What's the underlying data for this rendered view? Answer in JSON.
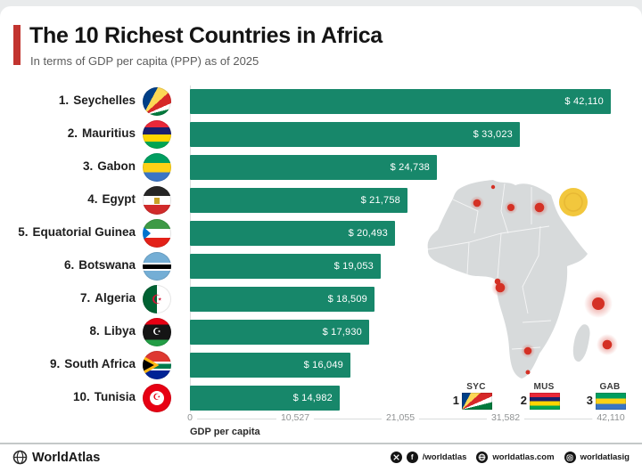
{
  "page": {
    "title": "The 10 Richest Countries in Africa",
    "subtitle": "In terms of GDP per capita (PPP) as of 2025",
    "accent_color": "#c2342f",
    "bar_color": "#17876a",
    "map_region_color": "#d7dadb",
    "map_dot_color": "#d43125",
    "sun_color": "#f2c73d"
  },
  "chart_data": {
    "type": "bar",
    "orientation": "horizontal",
    "title": "The 10 Richest Countries in Africa",
    "subtitle": "In terms of GDP per capita (PPP) as of 2025",
    "xlabel": "GDP per capita",
    "xlim": [
      0,
      42110
    ],
    "x_ticks": [
      "0",
      "10,527",
      "21,055",
      "31,582",
      "42,110"
    ],
    "grid": false,
    "categories": [
      "Seychelles",
      "Mauritius",
      "Gabon",
      "Egypt",
      "Equatorial Guinea",
      "Botswana",
      "Algeria",
      "Libya",
      "South Africa",
      "Tunisia"
    ],
    "values": [
      42110,
      33023,
      24738,
      21758,
      20493,
      19053,
      18509,
      17930,
      16049,
      14982
    ],
    "rows": [
      {
        "rank": "1.",
        "name": "Seychelles",
        "value": 42110,
        "label": "$ 42,110",
        "flag": "seychelles-flag-icon"
      },
      {
        "rank": "2.",
        "name": "Mauritius",
        "value": 33023,
        "label": "$ 33,023",
        "flag": "mauritius-flag-icon"
      },
      {
        "rank": "3.",
        "name": "Gabon",
        "value": 24738,
        "label": "$ 24,738",
        "flag": "gabon-flag-icon"
      },
      {
        "rank": "4.",
        "name": "Egypt",
        "value": 21758,
        "label": "$ 21,758",
        "flag": "egypt-flag-icon"
      },
      {
        "rank": "5.",
        "name": "Equatorial Guinea",
        "value": 20493,
        "label": "$ 20,493",
        "flag": "equatorial-guinea-flag-icon"
      },
      {
        "rank": "6.",
        "name": "Botswana",
        "value": 19053,
        "label": "$ 19,053",
        "flag": "botswana-flag-icon"
      },
      {
        "rank": "7.",
        "name": "Algeria",
        "value": 18509,
        "label": "$ 18,509",
        "flag": "algeria-flag-icon"
      },
      {
        "rank": "8.",
        "name": "Libya",
        "value": 17930,
        "label": "$ 17,930",
        "flag": "libya-flag-icon"
      },
      {
        "rank": "9.",
        "name": "South Africa",
        "value": 16049,
        "label": "$ 16,049",
        "flag": "south-africa-flag-icon"
      },
      {
        "rank": "10.",
        "name": "Tunisia",
        "value": 14982,
        "label": "$ 14,982",
        "flag": "tunisia-flag-icon"
      }
    ]
  },
  "legend": {
    "items": [
      {
        "rank": "1",
        "code": "SYC"
      },
      {
        "rank": "2",
        "code": "MUS"
      },
      {
        "rank": "3",
        "code": "GAB"
      }
    ]
  },
  "footer": {
    "brand": "WorldAtlas",
    "social_handle": "/worldatlas",
    "website": "worldatlas.com",
    "instagram": "worldatlasig"
  }
}
